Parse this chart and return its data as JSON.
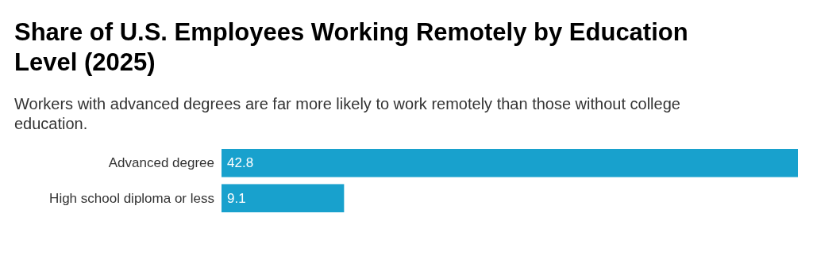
{
  "chart_data": {
    "type": "bar",
    "orientation": "horizontal",
    "title": "Share of U.S. Employees Working Remotely by Education Level (2025)",
    "subtitle": "Workers with advanced degrees are far more likely to work remotely than those without college education.",
    "categories": [
      "Advanced degree",
      "High school diploma or less"
    ],
    "values": [
      42.8,
      9.1
    ],
    "color": "#18a1cd",
    "data_labels": true
  }
}
